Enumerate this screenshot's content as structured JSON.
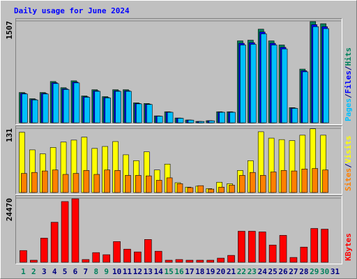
{
  "title": "Daily usage for June 2024",
  "categories": [
    1,
    2,
    3,
    4,
    5,
    6,
    7,
    8,
    9,
    10,
    11,
    12,
    13,
    14,
    15,
    16,
    17,
    18,
    19,
    20,
    21,
    22,
    23,
    24,
    25,
    26,
    27,
    28,
    29,
    30,
    31
  ],
  "category_colors": [
    "#00805c",
    "#00805c",
    "#000080",
    "#000080",
    "#000080",
    "#000080",
    "#000080",
    "#00805c",
    "#00805c",
    "#000080",
    "#000080",
    "#000080",
    "#000080",
    "#000080",
    "#00805c",
    "#00805c",
    "#000080",
    "#000080",
    "#000080",
    "#000080",
    "#000080",
    "#00805c",
    "#00805c",
    "#000080",
    "#000080",
    "#000080",
    "#000080",
    "#000080",
    "#00805c",
    "#00805c",
    "#000080"
  ],
  "separator": "/",
  "chart_data": [
    {
      "type": "bar",
      "ylim": [
        0,
        1507
      ],
      "yticks": [
        1507
      ],
      "series": [
        {
          "name": "Hits",
          "color": "#00805c",
          "values": [
            448,
            356,
            448,
            611,
            519,
            621,
            397,
            489,
            387,
            489,
            489,
            295,
            285,
            102,
            163,
            71,
            41,
            20,
            31,
            163,
            163,
            1212,
            1222,
            1385,
            1212,
            1151,
            224,
            794,
            1497,
            1466,
            0
          ]
        },
        {
          "name": "Files",
          "color": "#0000ff",
          "values": [
            435,
            345,
            435,
            593,
            503,
            602,
            385,
            474,
            375,
            474,
            474,
            286,
            276,
            99,
            158,
            69,
            40,
            19,
            30,
            158,
            158,
            1176,
            1185,
            1343,
            1176,
            1116,
            217,
            770,
            1452,
            1422,
            0
          ]
        },
        {
          "name": "Pages",
          "color": "#00c0ff",
          "values": [
            426,
            338,
            426,
            580,
            493,
            590,
            377,
            465,
            368,
            465,
            465,
            280,
            271,
            97,
            155,
            67,
            39,
            19,
            29,
            155,
            155,
            1151,
            1161,
            1316,
            1151,
            1093,
            213,
            754,
            1422,
            1393,
            0
          ]
        }
      ]
    },
    {
      "type": "bar",
      "ylim": [
        0,
        131
      ],
      "yticks": [
        131
      ],
      "series": [
        {
          "name": "Visits",
          "color": "#ffff00",
          "values": [
            123,
            87,
            79,
            92,
            103,
            107,
            113,
            90,
            94,
            104,
            77,
            65,
            83,
            46,
            58,
            20,
            11,
            13,
            8,
            21,
            18,
            45,
            65,
            124,
            111,
            108,
            106,
            117,
            130,
            117,
            0
          ]
        },
        {
          "name": "Sites",
          "color": "#ff8000",
          "values": [
            39,
            41,
            44,
            46,
            37,
            39,
            45,
            37,
            46,
            45,
            35,
            35,
            34,
            25,
            30,
            18,
            10,
            14,
            7,
            11,
            15,
            35,
            41,
            35,
            42,
            45,
            44,
            48,
            49,
            46,
            0
          ]
        }
      ]
    },
    {
      "type": "bar",
      "ylim": [
        0,
        24470
      ],
      "yticks": [
        24470
      ],
      "series": [
        {
          "name": "KBytes",
          "color": "#ff0000",
          "values": [
            4473,
            789,
            9208,
            15261,
            23154,
            24207,
            1052,
            3684,
            2894,
            7893,
            5000,
            3947,
            8683,
            4210,
            789,
            1052,
            789,
            789,
            789,
            1579,
            2631,
            11840,
            11840,
            11577,
            6578,
            10261,
            1842,
            5789,
            12893,
            12630,
            0
          ]
        }
      ]
    }
  ]
}
